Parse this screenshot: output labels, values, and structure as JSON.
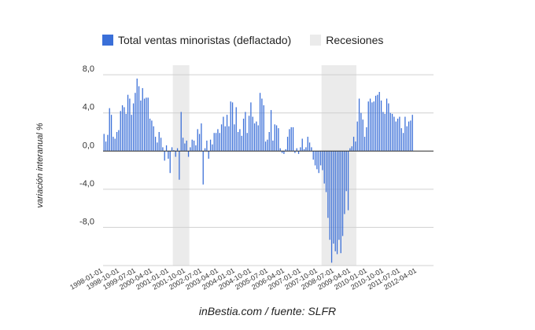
{
  "chart_data": {
    "type": "bar",
    "ylabel": "variación interanual %",
    "ylim": [
      -12,
      9
    ],
    "yticks": [
      {
        "value": 8,
        "label": "8,0"
      },
      {
        "value": 4,
        "label": "4,0"
      },
      {
        "value": 0,
        "label": "0,0"
      },
      {
        "value": -4,
        "label": "-4,0"
      },
      {
        "value": -8,
        "label": "-8,0"
      }
    ],
    "xticks": [
      "1998-01-01",
      "1998-10-01",
      "1999-07-01",
      "2000-04-01",
      "2001-01-01",
      "2001-10-01",
      "2002-07-01",
      "2003-04-01",
      "2004-01-01",
      "2004-10-01",
      "2005-07-01",
      "2006-04-01",
      "2007-01-01",
      "2007-10-01",
      "2008-07-01",
      "2009-04-01",
      "2010-01-01",
      "2010-10-01",
      "2011-07-01",
      "2012-04-01"
    ],
    "series": [
      {
        "name": "Total ventas minoristas (deflactado)",
        "color": "#3a6fd8",
        "start_month": "1998-01",
        "values": [
          1.8,
          1.0,
          1.7,
          4.5,
          3.8,
          1.5,
          1.3,
          2.0,
          2.2,
          4.2,
          4.8,
          4.6,
          3.9,
          5.9,
          5.5,
          3.8,
          5.0,
          6.1,
          7.6,
          6.8,
          5.3,
          6.6,
          5.5,
          5.6,
          5.6,
          3.4,
          3.2,
          2.6,
          1.5,
          0.9,
          2.0,
          1.4,
          0.4,
          -1.0,
          0.6,
          -0.8,
          -2.3,
          0.4,
          0.1,
          -0.6,
          0.3,
          -3.0,
          4.1,
          1.4,
          0.8,
          1.1,
          -0.6,
          0.4,
          1.2,
          1.1,
          0.6,
          2.3,
          1.8,
          2.9,
          -3.5,
          0.3,
          1.1,
          -0.8,
          1.2,
          0.7,
          1.9,
          1.9,
          2.3,
          1.9,
          2.8,
          3.6,
          2.6,
          3.8,
          2.6,
          5.2,
          5.1,
          2.8,
          4.6,
          2.0,
          2.3,
          1.6,
          3.4,
          4.1,
          1.9,
          3.7,
          5.1,
          3.6,
          2.9,
          3.1,
          2.7,
          6.1,
          5.5,
          4.8,
          1.0,
          1.2,
          2.0,
          4.3,
          1.1,
          2.8,
          2.7,
          2.4,
          0.3,
          -0.2,
          -0.3,
          0.2,
          1.5,
          2.3,
          2.5,
          2.5,
          -0.2,
          0.3,
          -0.3,
          0.4,
          1.3,
          0.2,
          0.4,
          1.5,
          0.9,
          0.4,
          -0.9,
          -1.5,
          -1.9,
          -2.3,
          -1.5,
          -2.0,
          -3.4,
          -4.3,
          -7.0,
          -9.3,
          -11.7,
          -9.7,
          -10.5,
          -10.8,
          -9.3,
          -10.7,
          -8.9,
          -6.6,
          -4.2,
          -6.2,
          0.3,
          0.5,
          1.5,
          1.0,
          3.1,
          5.5,
          4.0,
          3.3,
          1.5,
          2.5,
          5.2,
          5.5,
          5.1,
          5.2,
          5.8,
          5.9,
          6.2,
          5.3,
          4.1,
          3.9,
          5.5,
          5.0,
          4.0,
          3.9,
          3.6,
          3.1,
          3.4,
          3.6,
          2.4,
          1.9,
          3.6,
          2.6,
          3.1,
          3.2,
          3.8
        ]
      }
    ],
    "recessions": [
      {
        "label": "Recesiones",
        "start": "2001-03",
        "end": "2001-11"
      },
      {
        "start": "2007-12",
        "end": "2009-06"
      }
    ]
  },
  "legend": {
    "series_label": "Total ventas minoristas (deflactado)",
    "recession_label": "Recesiones",
    "series_color": "#3a6fd8",
    "recession_color": "#ebebeb"
  },
  "footer": "inBestia.com / fuente: SLFR"
}
